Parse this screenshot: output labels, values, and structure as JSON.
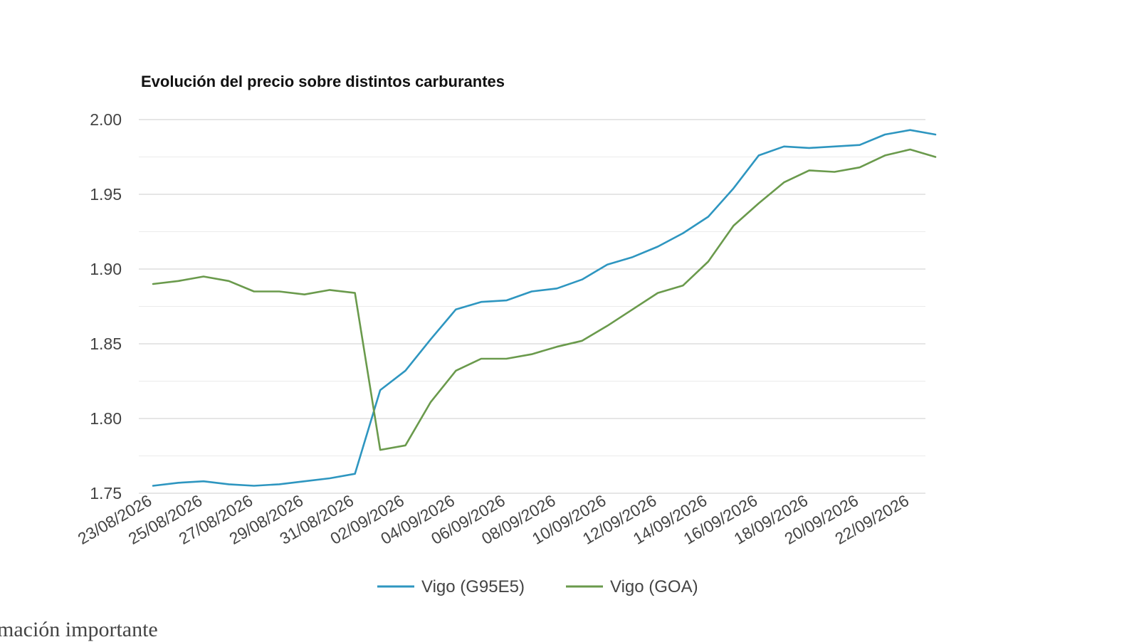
{
  "chart_data": {
    "type": "line",
    "title": "Evolución del precio sobre distintos carburantes",
    "xlabel": "",
    "ylabel": "",
    "ylim": [
      1.75,
      2.0
    ],
    "y_ticks": [
      "1.75",
      "1.80",
      "1.85",
      "1.90",
      "1.95",
      "2.00"
    ],
    "grid": true,
    "legend_position": "bottom",
    "x_tick_labels": [
      "23/08/2026",
      "25/08/2026",
      "27/08/2026",
      "29/08/2026",
      "31/08/2026",
      "02/09/2026",
      "04/09/2026",
      "06/09/2026",
      "08/09/2026",
      "10/09/2026",
      "12/09/2026",
      "14/09/2026",
      "16/09/2026",
      "18/09/2026",
      "20/09/2026",
      "22/09/2026"
    ],
    "x": [
      "23/08/2026",
      "24/08/2026",
      "25/08/2026",
      "26/08/2026",
      "27/08/2026",
      "28/08/2026",
      "29/08/2026",
      "30/08/2026",
      "31/08/2026",
      "01/09/2026",
      "02/09/2026",
      "03/09/2026",
      "04/09/2026",
      "05/09/2026",
      "06/09/2026",
      "07/09/2026",
      "08/09/2026",
      "09/09/2026",
      "10/09/2026",
      "11/09/2026",
      "12/09/2026",
      "13/09/2026",
      "14/09/2026",
      "15/09/2026",
      "16/09/2026",
      "17/09/2026",
      "18/09/2026",
      "19/09/2026",
      "20/09/2026",
      "21/09/2026",
      "22/09/2026",
      "23/09/2026"
    ],
    "series": [
      {
        "name": "Vigo (G95E5)",
        "color": "#2e96c0",
        "values": [
          1.755,
          1.757,
          1.758,
          1.756,
          1.755,
          1.756,
          1.758,
          1.76,
          1.763,
          1.819,
          1.832,
          1.853,
          1.873,
          1.878,
          1.879,
          1.885,
          1.887,
          1.893,
          1.903,
          1.908,
          1.915,
          1.924,
          1.935,
          1.954,
          1.976,
          1.982,
          1.981,
          1.982,
          1.983,
          1.99,
          1.993,
          1.99
        ]
      },
      {
        "name": "Vigo (GOA)",
        "color": "#6a9a4c",
        "values": [
          1.89,
          1.892,
          1.895,
          1.892,
          1.885,
          1.885,
          1.883,
          1.886,
          1.884,
          1.779,
          1.782,
          1.811,
          1.832,
          1.84,
          1.84,
          1.843,
          1.848,
          1.852,
          1.862,
          1.873,
          1.884,
          1.889,
          1.905,
          1.929,
          1.944,
          1.958,
          1.966,
          1.965,
          1.968,
          1.976,
          1.98,
          1.975
        ]
      }
    ]
  },
  "footer_text": "rmación importante"
}
